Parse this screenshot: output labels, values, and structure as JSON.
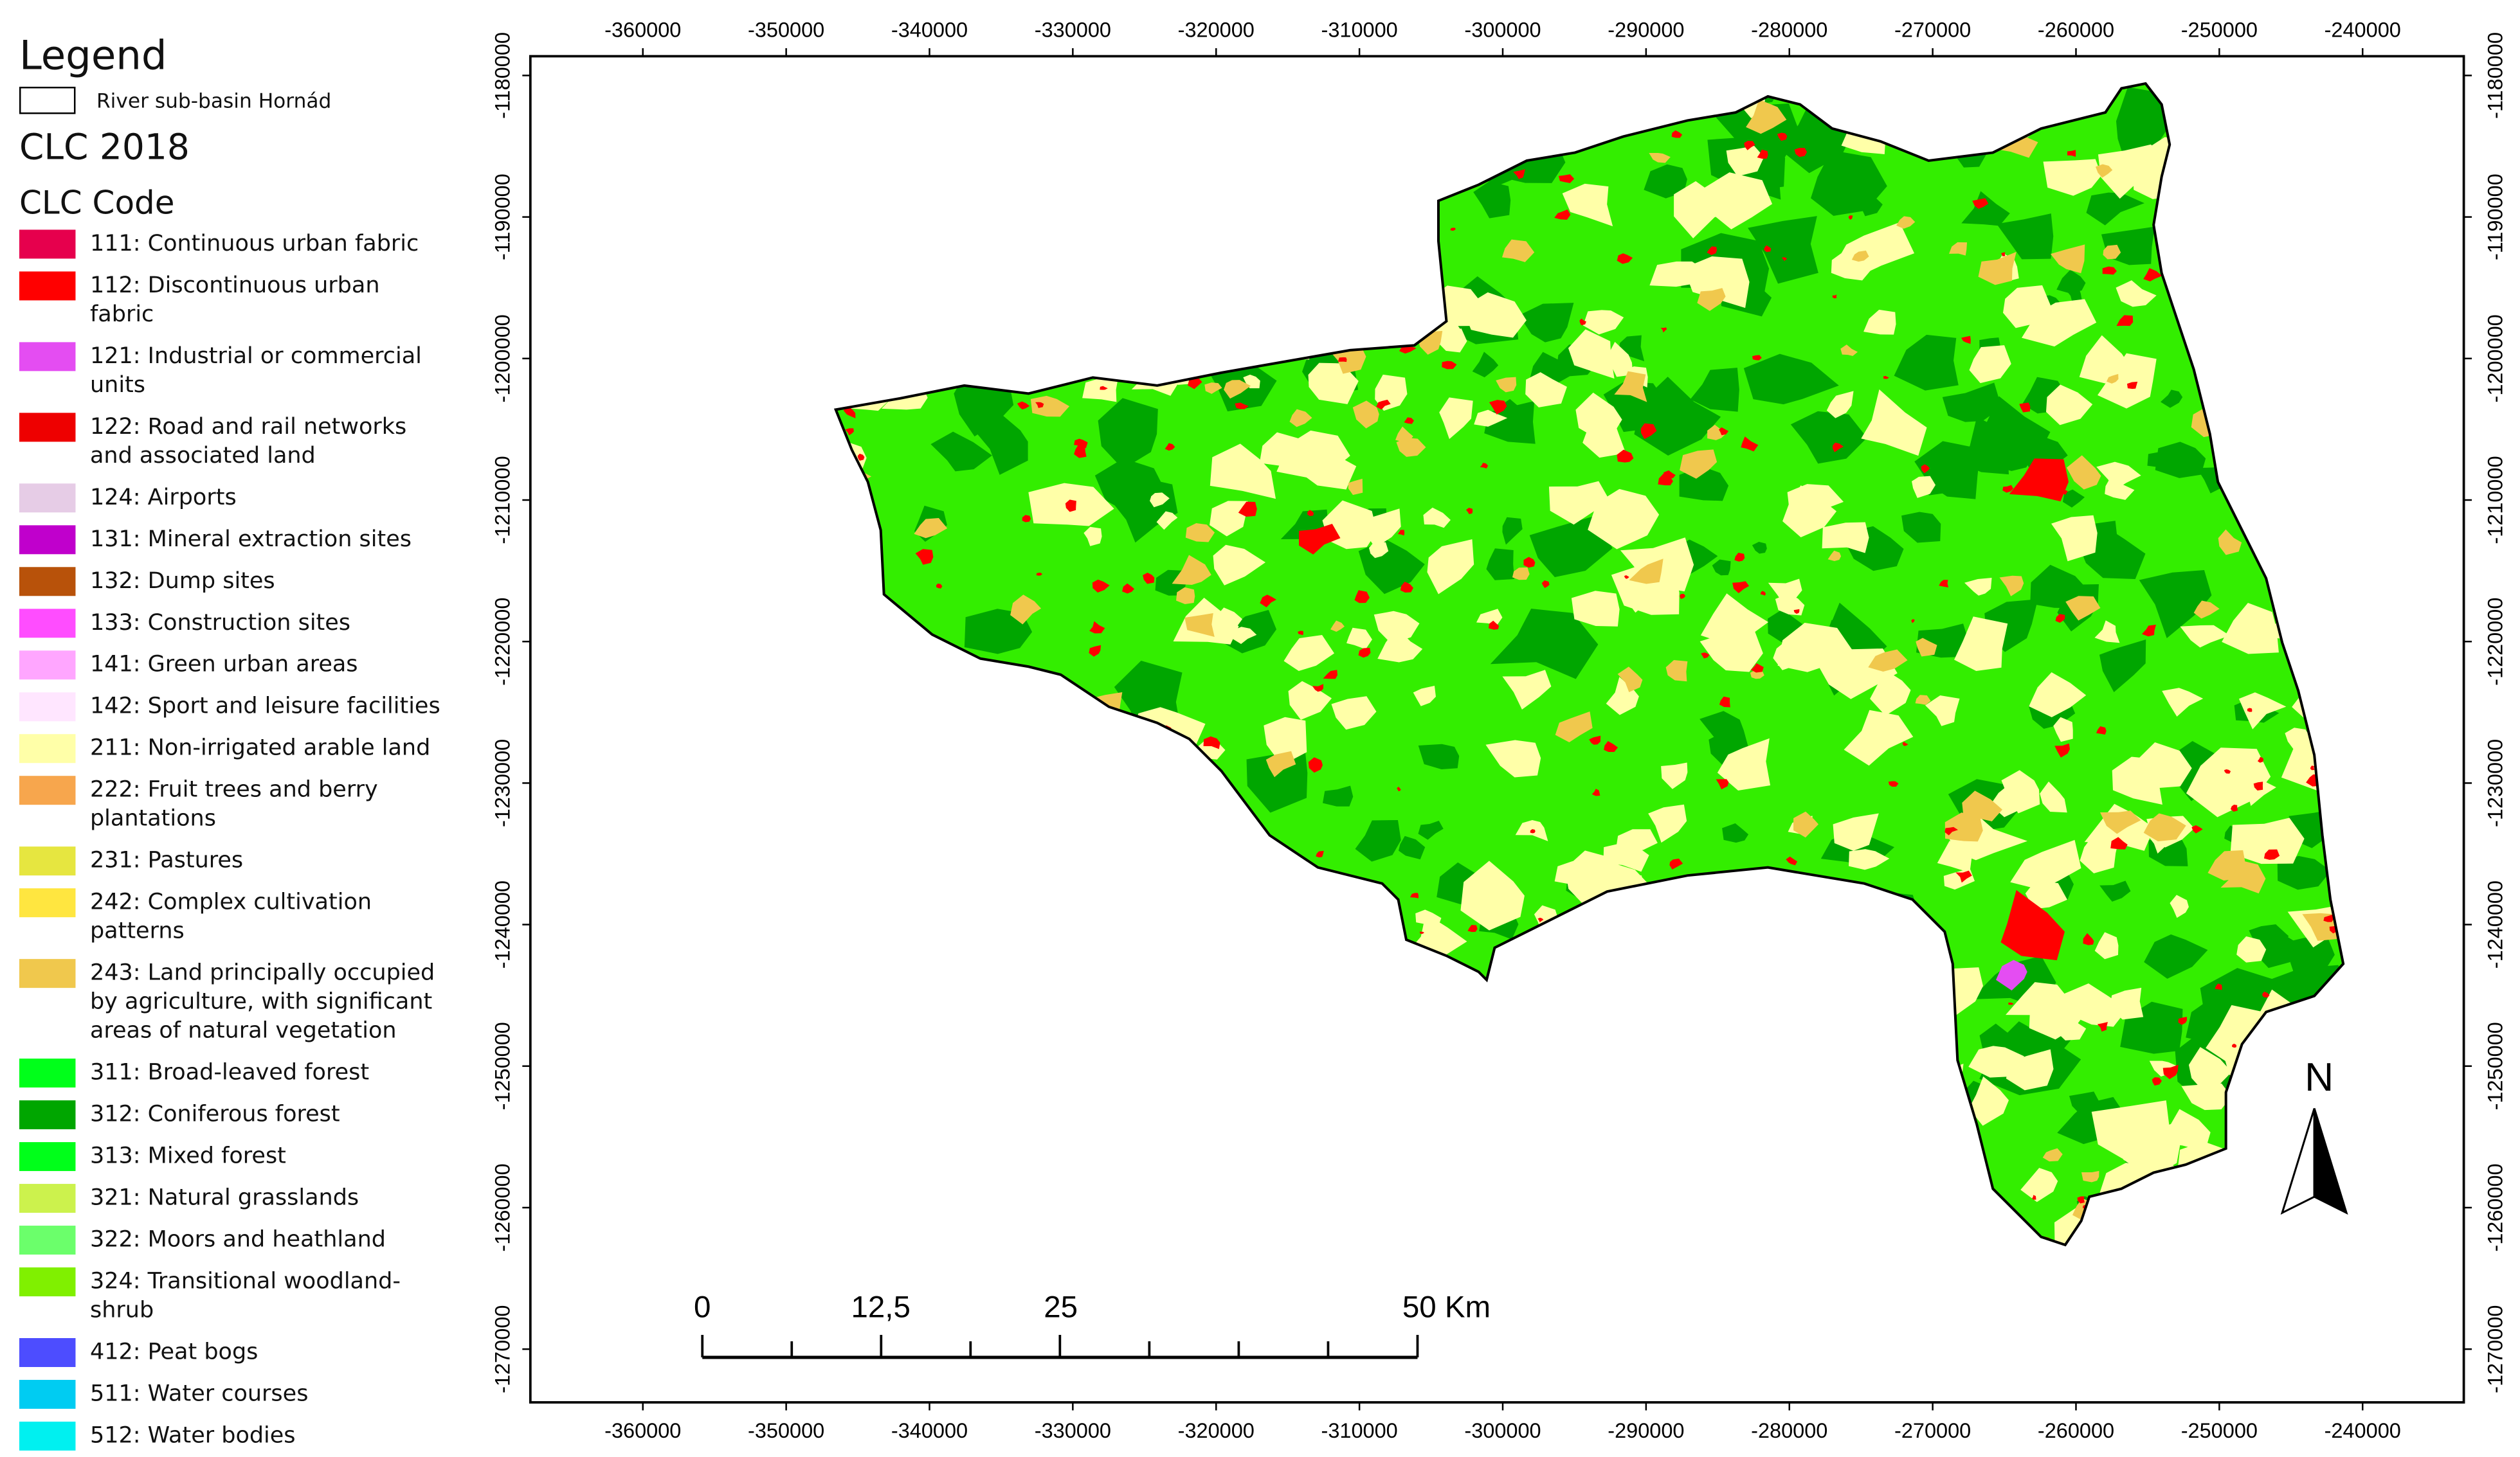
{
  "legend": {
    "title": "Legend",
    "basin_label": "River sub-basin Hornád",
    "clc_title": "CLC 2018",
    "code_title": "CLC Code",
    "items": [
      {
        "label": "111: Continuous urban fabric",
        "color": "#e6004d"
      },
      {
        "label": "112: Discontinuous urban fabric",
        "color": "#ff0000"
      },
      {
        "label": "121: Industrial or commercial units",
        "color": "#e44df2"
      },
      {
        "label": "122: Road and rail networks and associated land",
        "color": "#ee0000"
      },
      {
        "label": "124: Airports",
        "color": "#e6cce6"
      },
      {
        "label": "131: Mineral extraction sites",
        "color": "#c000cc"
      },
      {
        "label": "132: Dump sites",
        "color": "#b8520a"
      },
      {
        "label": "133: Construction sites",
        "color": "#ff4dff"
      },
      {
        "label": "141: Green urban areas",
        "color": "#ffa6ff"
      },
      {
        "label": "142: Sport and leisure facilities",
        "color": "#ffe6ff"
      },
      {
        "label": "211: Non-irrigated arable land",
        "color": "#ffffa8"
      },
      {
        "label": "222: Fruit trees and berry plantations",
        "color": "#f7a64d"
      },
      {
        "label": "231: Pastures",
        "color": "#e6e640"
      },
      {
        "label": "242: Complex cultivation patterns",
        "color": "#ffe640"
      },
      {
        "label": "243: Land principally occupied by agriculture, with significant areas of natural vegetation",
        "color": "#f0c84d"
      },
      {
        "label": "311: Broad-leaved forest",
        "color": "#00ff1a"
      },
      {
        "label": "312: Coniferous forest",
        "color": "#00a600"
      },
      {
        "label": "313: Mixed forest",
        "color": "#00ff1a"
      },
      {
        "label": "321: Natural grasslands",
        "color": "#ccf24d"
      },
      {
        "label": "322: Moors and heathland",
        "color": "#6bff6b"
      },
      {
        "label": "324: Transitional woodland-shrub",
        "color": "#80f000"
      },
      {
        "label": "412: Peat bogs",
        "color": "#4d4dff"
      },
      {
        "label": "511: Water courses",
        "color": "#00ccf2"
      },
      {
        "label": "512: Water bodies",
        "color": "#00f0f0"
      }
    ]
  },
  "map": {
    "xlim": [
      -367850,
      -232940
    ],
    "ylim": [
      -1178640,
      -1273760
    ],
    "xticks": [
      -360000,
      -350000,
      -340000,
      -330000,
      -320000,
      -310000,
      -300000,
      -290000,
      -280000,
      -270000,
      -260000,
      -250000,
      -240000
    ],
    "yticks": [
      -1180000,
      -1190000,
      -1200000,
      -1210000,
      -1220000,
      -1230000,
      -1240000,
      -1250000,
      -1260000,
      -1270000
    ],
    "scale_bar": {
      "labels": [
        "0",
        "12,5",
        "25",
        "50 Km"
      ]
    },
    "north": "N"
  }
}
